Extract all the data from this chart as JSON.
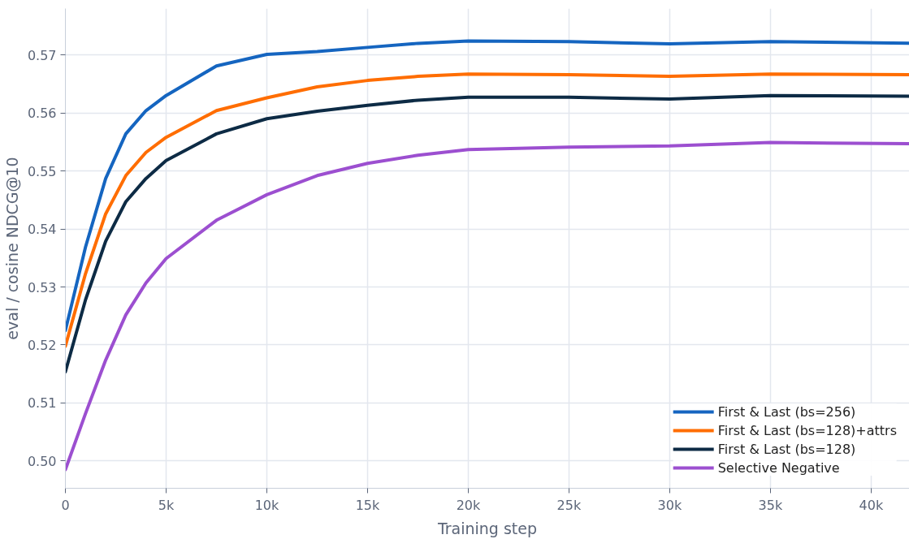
{
  "chart_data": {
    "type": "line",
    "xlabel": "Training step",
    "ylabel": "eval / cosine NDCG@10",
    "x": [
      0,
      1000,
      2000,
      3000,
      4000,
      5000,
      7500,
      10000,
      12500,
      15000,
      17500,
      20000,
      25000,
      30000,
      35000,
      41900
    ],
    "series": [
      {
        "name": "First & Last (bs=256)",
        "color": "#1565c0",
        "values": [
          0.5225,
          0.5369,
          0.5487,
          0.5564,
          0.5604,
          0.563,
          0.5681,
          0.5701,
          0.5706,
          0.5713,
          0.572,
          0.5724,
          0.5723,
          0.5719,
          0.5723,
          0.572
        ]
      },
      {
        "name": "First & Last (bs=128)+attrs",
        "color": "#ff6d00",
        "values": [
          0.5198,
          0.5323,
          0.5426,
          0.5492,
          0.5532,
          0.5558,
          0.5604,
          0.5626,
          0.5645,
          0.5656,
          0.5663,
          0.5667,
          0.5666,
          0.5663,
          0.5667,
          0.5666
        ]
      },
      {
        "name": "First & Last (bs=128)",
        "color": "#0d2b45",
        "values": [
          0.5154,
          0.5278,
          0.5379,
          0.5447,
          0.5487,
          0.5518,
          0.5564,
          0.559,
          0.5603,
          0.5613,
          0.5622,
          0.5627,
          0.5627,
          0.5624,
          0.563,
          0.5629
        ]
      },
      {
        "name": "Selective Negative",
        "color": "#9c4fd0",
        "values": [
          0.4985,
          0.5082,
          0.5174,
          0.5252,
          0.5307,
          0.5349,
          0.5415,
          0.5459,
          0.5492,
          0.5513,
          0.5527,
          0.5537,
          0.5541,
          0.5543,
          0.5549,
          0.5547
        ]
      }
    ],
    "xlim": [
      0,
      41900
    ],
    "ylim": [
      0.4953,
      0.578
    ],
    "xticks": [
      0,
      {
        "value": 5000,
        "label": "5k"
      },
      {
        "value": 10000,
        "label": "10k"
      },
      {
        "value": 15000,
        "label": "15k"
      },
      {
        "value": 20000,
        "label": "20k"
      },
      {
        "value": 25000,
        "label": "25k"
      },
      {
        "value": 30000,
        "label": "30k"
      },
      {
        "value": 35000,
        "label": "35k"
      },
      {
        "value": 40000,
        "label": "40k"
      }
    ],
    "yticks": [
      {
        "value": 0.5,
        "label": "0.50"
      },
      0.51,
      0.52,
      0.53,
      0.54,
      0.55,
      0.56,
      0.57
    ],
    "grid": true,
    "legend": "bottom right",
    "line_style": "solid"
  }
}
